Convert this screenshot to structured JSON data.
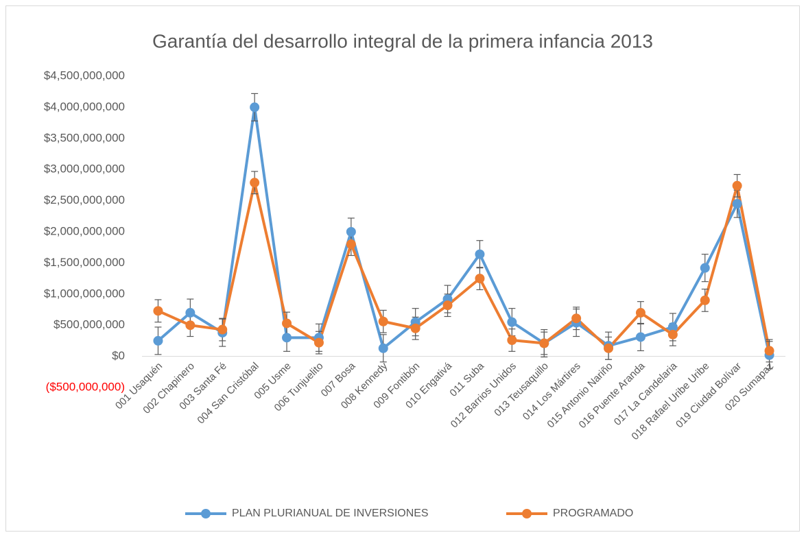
{
  "chart_data": {
    "type": "line",
    "title": "Garantía del desarrollo integral de la primera infancia 2013",
    "categories": [
      "001 Usaquén",
      "002 Chapinero",
      "003 Santa Fé",
      "004 San Cristóbal",
      "005 Usme",
      "006 Tunjuelito",
      "007 Bosa",
      "008 Kennedy",
      "009 Fontibón",
      "010 Engativá",
      "011 Suba",
      "012 Barrios Unidos",
      "013 Teusaquillo",
      "014 Los Mártires",
      "015 Antonio Nariño",
      "016 Puente Aranda",
      "017 La Candelaria",
      "018 Rafael Uribe Uribe",
      "019 Ciudad Bolívar",
      "020 Sumapaz"
    ],
    "series": [
      {
        "name": "PLAN PLURIANUAL DE INVERSIONES",
        "color": "#5b9bd5",
        "error": 220000000,
        "values": [
          250000000,
          700000000,
          380000000,
          4000000000,
          300000000,
          300000000,
          2000000000,
          130000000,
          550000000,
          920000000,
          1640000000,
          550000000,
          210000000,
          540000000,
          170000000,
          310000000,
          470000000,
          1420000000,
          2450000000,
          20000000
        ]
      },
      {
        "name": "PROGRAMADO",
        "color": "#ed7d31",
        "error": 180000000,
        "values": [
          730000000,
          500000000,
          430000000,
          2790000000,
          530000000,
          220000000,
          1800000000,
          560000000,
          450000000,
          820000000,
          1250000000,
          260000000,
          210000000,
          610000000,
          130000000,
          700000000,
          350000000,
          900000000,
          2740000000,
          90000000
        ]
      }
    ],
    "ylim": [
      -500000000,
      4500000000
    ],
    "yticks": [
      {
        "value": -500000000,
        "label": "($500,000,000)"
      },
      {
        "value": 0,
        "label": "$0"
      },
      {
        "value": 500000000,
        "label": "$500,000,000"
      },
      {
        "value": 1000000000,
        "label": "$1,000,000,000"
      },
      {
        "value": 1500000000,
        "label": "$1,500,000,000"
      },
      {
        "value": 2000000000,
        "label": "$2,000,000,000"
      },
      {
        "value": 2500000000,
        "label": "$2,500,000,000"
      },
      {
        "value": 3000000000,
        "label": "$3,000,000,000"
      },
      {
        "value": 3500000000,
        "label": "$3,500,000,000"
      },
      {
        "value": 4000000000,
        "label": "$4,000,000,000"
      },
      {
        "value": 4500000000,
        "label": "$4,500,000,000"
      }
    ],
    "negative_label_color": "#ff0000",
    "grid": false,
    "legend": "bottom"
  }
}
